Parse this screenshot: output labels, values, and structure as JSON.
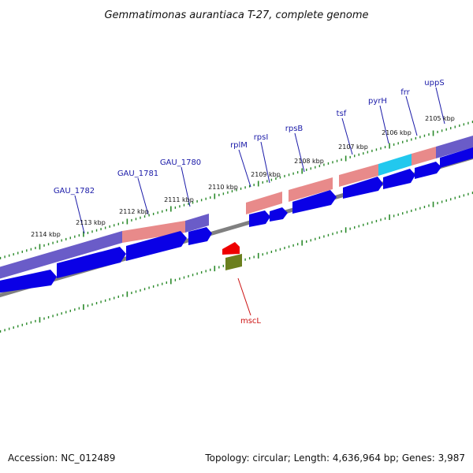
{
  "title": "Gemmatimonas aurantiaca T-27, complete genome",
  "footer": {
    "accession": "Accession: NC_012489",
    "summary": "Topology: circular; Length: 4,636,964 bp; Genes: 3,987"
  },
  "scale_labels": [
    "2114 kbp",
    "2113 kbp",
    "2112 kbp",
    "2111 kbp",
    "2110 kbp",
    "2109 kbp",
    "2108 kbp",
    "2107 kbp",
    "2106 kbp",
    "2105 kbp"
  ],
  "gene_labels": [
    "GAU_1782",
    "GAU_1781",
    "GAU_1780",
    "rplM",
    "rpsI",
    "rpsB",
    "tsf",
    "pyrH",
    "frr",
    "uppS",
    "mscL"
  ],
  "colors": {
    "backbone": "#808080",
    "cds": "#0a00e6",
    "feature_purple": "#6a5cc8",
    "feature_pink": "#e88a8a",
    "feature_cyan": "#22c8ee",
    "minus_cds": "#ee0000",
    "minus_feature": "#6b7f1e",
    "tick": "#2a8a2a",
    "label_forward": "#1a1aa8",
    "label_reverse": "#cc1111"
  }
}
